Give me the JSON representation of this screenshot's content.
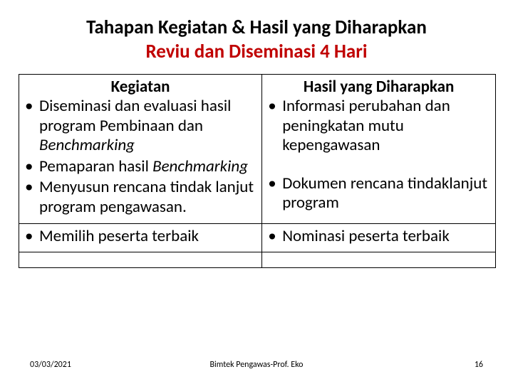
{
  "title": {
    "line1": "Tahapan Kegiatan & Hasil yang Diharapkan",
    "line2": "Reviu dan Diseminasi  4 Hari"
  },
  "headers": {
    "left": "Kegiatan",
    "right": "Hasil yang Diharapkan"
  },
  "rows": [
    {
      "left_items": [
        {
          "pre": "Diseminasi dan evaluasi hasil program Pembinaan dan ",
          "em": "Benchmarking",
          "post": ""
        },
        {
          "pre": "Pemaparan hasil ",
          "em": "Benchmarking",
          "post": ""
        },
        {
          "pre": "Menyusun rencana tindak lanjut program pengawasan.",
          "em": "",
          "post": ""
        }
      ],
      "right_items": [
        {
          "pre": "Informasi perubahan dan peningkatan mutu kepengawasan",
          "em": "",
          "post": ""
        },
        {
          "pre": "Dokumen rencana tindaklanjut program",
          "em": "",
          "post": ""
        }
      ],
      "right_offset": true
    },
    {
      "left_items": [
        {
          "pre": "Memilih peserta terbaik",
          "em": "",
          "post": ""
        }
      ],
      "right_items": [
        {
          "pre": "Nominasi peserta terbaik",
          "em": "",
          "post": ""
        }
      ],
      "right_offset": false
    }
  ],
  "footer": {
    "date": "03/03/2021",
    "center": "Bimtek Pengawas-Prof. Eko",
    "page": "16"
  },
  "colors": {
    "subtitle": "#c00000",
    "text": "#000000",
    "border": "#000000",
    "background": "#ffffff"
  },
  "typography": {
    "title_fontsize": 27,
    "body_fontsize": 23,
    "footer_fontsize": 12,
    "title_weight": 700
  }
}
